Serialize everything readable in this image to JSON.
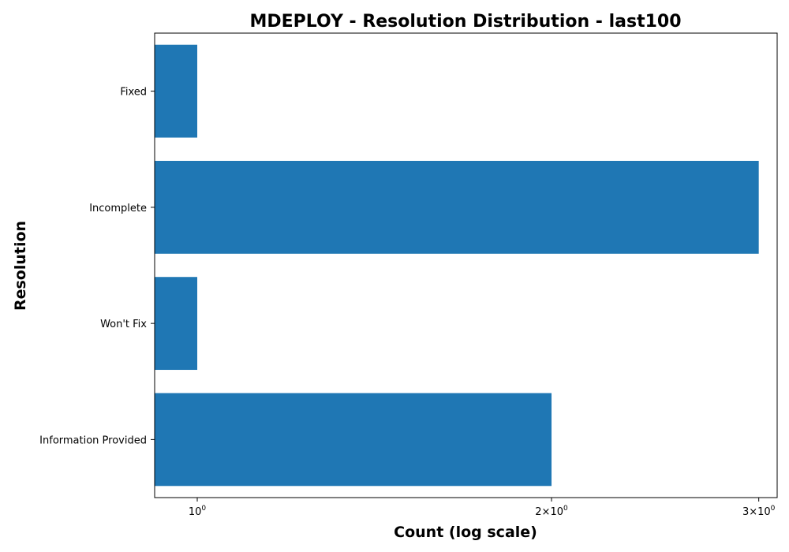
{
  "chart_data": {
    "type": "bar",
    "orientation": "horizontal",
    "title": "MDEPLOY - Resolution Distribution - last100",
    "xlabel": "Count (log scale)",
    "ylabel": "Resolution",
    "x_scale": "log",
    "xlim": [
      0.92,
      3.11
    ],
    "categories": [
      "Fixed",
      "Incomplete",
      "Won't Fix",
      "Information Provided"
    ],
    "values": [
      1,
      3,
      1,
      2
    ],
    "x_ticks": [
      {
        "value": 1,
        "base": "10",
        "exp": "0"
      },
      {
        "value": 2,
        "mult": "2",
        "base": "10",
        "exp": "0"
      },
      {
        "value": 3,
        "mult": "3",
        "base": "10",
        "exp": "0"
      }
    ],
    "bar_color": "#1f77b4",
    "grid": false,
    "legend": "none"
  }
}
